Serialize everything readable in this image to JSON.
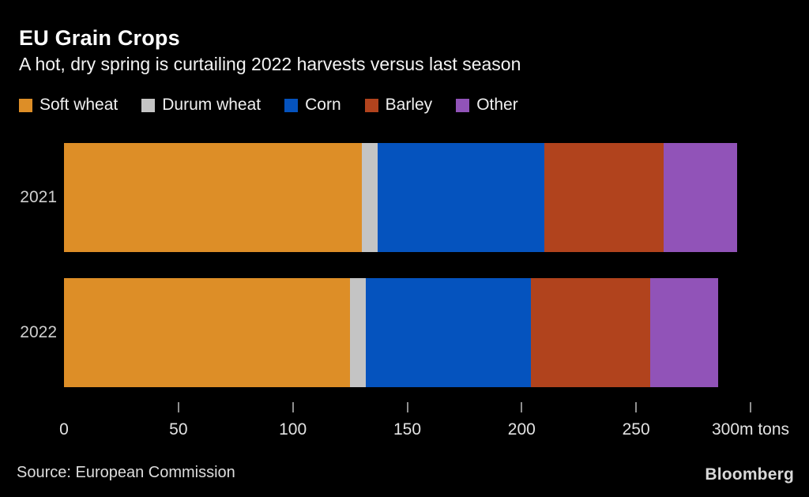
{
  "header": {
    "title": "EU Grain Crops",
    "subtitle": "A hot, dry spring is curtailing 2022 harvests versus last season"
  },
  "chart_data": {
    "type": "bar",
    "orientation": "horizontal",
    "stacked": true,
    "title": "EU Grain Crops",
    "subtitle": "A hot, dry spring is curtailing 2022 harvests versus last season",
    "unit": "m tons",
    "categories": [
      "2021",
      "2022"
    ],
    "series": [
      {
        "name": "Soft wheat",
        "color": "#DD8E27",
        "values": [
          130,
          125
        ]
      },
      {
        "name": "Durum wheat",
        "color": "#C4C4C4",
        "values": [
          7,
          7
        ]
      },
      {
        "name": "Corn",
        "color": "#0553BE",
        "values": [
          73,
          72
        ]
      },
      {
        "name": "Barley",
        "color": "#B1431D",
        "values": [
          52,
          52
        ]
      },
      {
        "name": "Other",
        "color": "#9153B8",
        "values": [
          32,
          30
        ]
      }
    ],
    "totals": [
      294,
      286
    ],
    "x_ticks": [
      {
        "value": 0,
        "label": "0"
      },
      {
        "value": 50,
        "label": "50"
      },
      {
        "value": 100,
        "label": "100"
      },
      {
        "value": 150,
        "label": "150"
      },
      {
        "value": 200,
        "label": "200"
      },
      {
        "value": 250,
        "label": "250"
      },
      {
        "value": 300,
        "label": "300m tons"
      }
    ],
    "xlim": [
      0,
      320
    ],
    "grid": false,
    "legend_position": "top"
  },
  "colors": {
    "background": "#000000",
    "title_text": "#FFFFFF",
    "subtitle_text": "#F4F4F4",
    "axis_text": "#E2E2E2",
    "tick_mark": "#8F8F8F",
    "category_text": "#CFCFCF"
  },
  "footer": {
    "source": "Source: European Commission",
    "brand": "Bloomberg"
  }
}
